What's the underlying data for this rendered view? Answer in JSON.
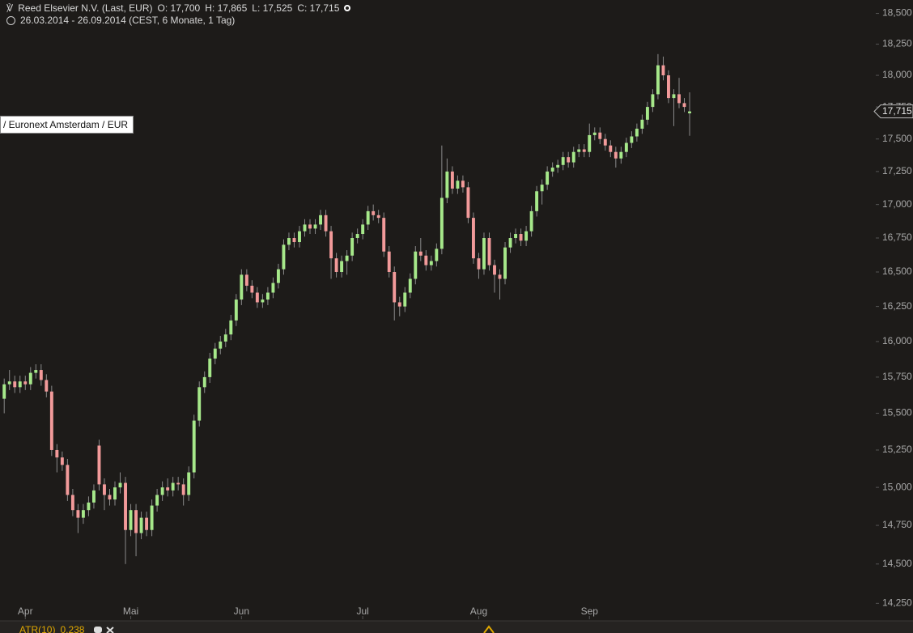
{
  "chart_data": {
    "type": "candlestick",
    "title": "Reed Elsevier N.V. (Last, EUR)",
    "ohlc_text": [
      "O: 17,700",
      "H: 17,865",
      "L: 17,525",
      "C: 17,715"
    ],
    "subtitle": "26.03.2014 - 26.09.2014 (CEST, 6 Monate, 1 Tag)",
    "exchange_label": "/ Euronext Amsterdam / EUR",
    "last_price_label": {
      "value": 17.715,
      "label": "17,715"
    },
    "indicator": {
      "name": "ATR(10)",
      "value_label": "0,238"
    },
    "log_scale": true,
    "grid": false,
    "up_color": "#a6e88a",
    "down_color": "#f29a9a",
    "wick_color": "#8a8a8a",
    "ylim": [
      14.15,
      18.61
    ],
    "yticks": [
      {
        "value": 14.25,
        "label": "14,250"
      },
      {
        "value": 14.5,
        "label": "14,500"
      },
      {
        "value": 14.75,
        "label": "14,750"
      },
      {
        "value": 15,
        "label": "15,000"
      },
      {
        "value": 15.25,
        "label": "15,250"
      },
      {
        "value": 15.5,
        "label": "15,500"
      },
      {
        "value": 15.75,
        "label": "15,750"
      },
      {
        "value": 16,
        "label": "16,000"
      },
      {
        "value": 16.25,
        "label": "16,250"
      },
      {
        "value": 16.5,
        "label": "16,500"
      },
      {
        "value": 16.75,
        "label": "16,750"
      },
      {
        "value": 17,
        "label": "17,000"
      },
      {
        "value": 17.25,
        "label": "17,250"
      },
      {
        "value": 17.5,
        "label": "17,500"
      },
      {
        "value": 17.75,
        "label": "17,750"
      },
      {
        "value": 18,
        "label": "18,000"
      },
      {
        "value": 18.25,
        "label": "18,250"
      },
      {
        "value": 18.5,
        "label": "18,500"
      }
    ],
    "xlim": [
      -0.8,
      165
    ],
    "xticks": [
      {
        "value": 4,
        "label": "Apr"
      },
      {
        "value": 24,
        "label": "Mai"
      },
      {
        "value": 45,
        "label": "Jun"
      },
      {
        "value": 68,
        "label": "Jul"
      },
      {
        "value": 90,
        "label": "Aug"
      },
      {
        "value": 111,
        "label": "Sep"
      }
    ],
    "open": [
      15.6,
      15.7,
      15.72,
      15.68,
      15.72,
      15.7,
      15.78,
      15.8,
      15.73,
      15.65,
      15.25,
      15.2,
      15.15,
      14.95,
      14.85,
      14.8,
      14.85,
      14.9,
      15.28,
      15.02,
      14.95,
      14.92,
      15.0,
      15.03,
      14.72,
      14.85,
      14.7,
      14.8,
      14.72,
      14.88,
      14.95,
      15.0,
      14.98,
      15.03,
      15.02,
      14.95,
      15.1,
      15.45,
      15.68,
      15.75,
      15.88,
      15.95,
      16.0,
      16.05,
      16.15,
      16.3,
      16.48,
      16.4,
      16.35,
      16.28,
      16.3,
      16.35,
      16.42,
      16.52,
      16.7,
      16.75,
      16.72,
      16.8,
      16.85,
      16.82,
      16.85,
      16.92,
      16.8,
      16.6,
      16.5,
      16.58,
      16.62,
      16.75,
      16.78,
      16.85,
      16.95,
      16.92,
      16.9,
      16.65,
      16.5,
      16.28,
      16.25,
      16.35,
      16.45,
      16.65,
      16.62,
      16.55,
      16.58,
      16.67,
      17.05,
      17.25,
      17.12,
      17.18,
      17.13,
      16.9,
      16.6,
      16.52,
      16.75,
      16.55,
      16.48,
      16.45,
      16.68,
      16.75,
      16.78,
      16.73,
      16.8,
      16.95,
      17.1,
      17.15,
      17.25,
      17.28,
      17.3,
      17.36,
      17.32,
      17.4,
      17.42,
      17.4,
      17.53,
      17.55,
      17.5,
      17.45,
      17.4,
      17.35,
      17.4,
      17.47,
      17.52,
      17.58,
      17.65,
      17.75,
      17.85,
      18.08,
      18.0,
      17.82,
      17.85,
      17.78,
      17.7
    ],
    "high": [
      15.74,
      15.8,
      15.76,
      15.76,
      15.76,
      15.82,
      15.84,
      15.84,
      15.77,
      15.69,
      15.29,
      15.24,
      15.19,
      14.99,
      14.89,
      14.89,
      14.94,
      15.02,
      15.32,
      15.06,
      14.99,
      15.04,
      15.1,
      15.07,
      14.89,
      14.89,
      14.84,
      14.84,
      14.92,
      14.99,
      15.04,
      15.06,
      15.07,
      15.07,
      15.06,
      15.14,
      15.49,
      15.72,
      15.79,
      15.92,
      15.99,
      16.04,
      16.09,
      16.19,
      16.34,
      16.52,
      16.52,
      16.44,
      16.39,
      16.34,
      16.39,
      16.46,
      16.56,
      16.74,
      16.79,
      16.79,
      16.84,
      16.89,
      16.89,
      16.89,
      16.96,
      16.96,
      16.84,
      16.64,
      16.62,
      16.66,
      16.79,
      16.82,
      16.89,
      16.99,
      17.0,
      16.96,
      16.94,
      16.69,
      16.54,
      16.32,
      16.39,
      16.49,
      16.69,
      16.75,
      16.66,
      16.62,
      16.71,
      17.45,
      17.35,
      17.29,
      17.22,
      17.22,
      17.17,
      16.94,
      16.64,
      16.79,
      16.79,
      16.59,
      16.52,
      16.72,
      16.79,
      16.82,
      16.82,
      16.84,
      16.99,
      17.14,
      17.19,
      17.29,
      17.32,
      17.34,
      17.4,
      17.4,
      17.44,
      17.46,
      17.46,
      17.62,
      17.59,
      17.59,
      17.54,
      17.49,
      17.44,
      17.44,
      17.51,
      17.56,
      17.62,
      17.69,
      17.79,
      17.89,
      18.17,
      18.15,
      18.04,
      17.89,
      17.98,
      17.82,
      17.865
    ],
    "low": [
      15.5,
      15.66,
      15.64,
      15.64,
      15.66,
      15.66,
      15.74,
      15.69,
      15.61,
      15.21,
      15.1,
      15.11,
      14.91,
      14.81,
      14.7,
      14.76,
      14.81,
      14.86,
      14.98,
      14.85,
      14.88,
      14.88,
      14.96,
      14.5,
      14.68,
      14.55,
      14.66,
      14.68,
      14.68,
      14.84,
      14.91,
      14.94,
      14.94,
      14.98,
      14.88,
      14.91,
      15.06,
      15.41,
      15.64,
      15.71,
      15.84,
      15.91,
      15.96,
      16.01,
      16.11,
      16.26,
      16.36,
      16.31,
      16.24,
      16.24,
      16.26,
      16.31,
      16.38,
      16.48,
      16.66,
      16.68,
      16.68,
      16.76,
      16.78,
      16.78,
      16.81,
      16.76,
      16.45,
      16.46,
      16.46,
      16.48,
      16.58,
      16.71,
      16.74,
      16.81,
      16.88,
      16.86,
      16.61,
      16.46,
      16.15,
      16.18,
      16.21,
      16.31,
      16.41,
      16.58,
      16.51,
      16.51,
      16.54,
      16.63,
      17.01,
      17.08,
      17.08,
      17.09,
      16.86,
      16.56,
      16.45,
      16.48,
      16.51,
      16.35,
      16.3,
      16.41,
      16.64,
      16.71,
      16.69,
      16.69,
      16.76,
      16.91,
      17.0,
      17.11,
      17.21,
      17.24,
      17.26,
      17.28,
      17.28,
      17.36,
      17.36,
      17.36,
      17.49,
      17.46,
      17.41,
      17.36,
      17.28,
      17.31,
      17.36,
      17.43,
      17.48,
      17.54,
      17.61,
      17.71,
      17.81,
      17.96,
      17.78,
      17.6,
      17.74,
      17.71,
      17.525
    ],
    "close": [
      15.7,
      15.72,
      15.68,
      15.72,
      15.7,
      15.78,
      15.8,
      15.73,
      15.65,
      15.25,
      15.2,
      15.15,
      14.95,
      14.85,
      14.8,
      14.85,
      14.9,
      14.98,
      15.02,
      14.95,
      14.92,
      15.0,
      15.03,
      14.72,
      14.85,
      14.7,
      14.8,
      14.72,
      14.88,
      14.95,
      15.0,
      14.98,
      15.03,
      15.02,
      14.95,
      15.1,
      15.45,
      15.68,
      15.75,
      15.88,
      15.95,
      16.0,
      16.05,
      16.15,
      16.3,
      16.48,
      16.4,
      16.35,
      16.28,
      16.3,
      16.35,
      16.42,
      16.52,
      16.7,
      16.75,
      16.72,
      16.8,
      16.85,
      16.82,
      16.85,
      16.92,
      16.8,
      16.6,
      16.5,
      16.58,
      16.62,
      16.75,
      16.78,
      16.85,
      16.95,
      16.92,
      16.9,
      16.65,
      16.5,
      16.28,
      16.25,
      16.35,
      16.45,
      16.65,
      16.62,
      16.55,
      16.58,
      16.67,
      17.05,
      17.25,
      17.12,
      17.18,
      17.13,
      16.9,
      16.6,
      16.52,
      16.75,
      16.55,
      16.48,
      16.45,
      16.68,
      16.75,
      16.78,
      16.73,
      16.8,
      16.95,
      17.1,
      17.15,
      17.25,
      17.28,
      17.3,
      17.36,
      17.32,
      17.4,
      17.42,
      17.4,
      17.53,
      17.55,
      17.5,
      17.45,
      17.4,
      17.35,
      17.4,
      17.47,
      17.52,
      17.58,
      17.65,
      17.75,
      17.85,
      18.08,
      18.0,
      17.82,
      17.85,
      17.78,
      17.75,
      17.715
    ]
  }
}
